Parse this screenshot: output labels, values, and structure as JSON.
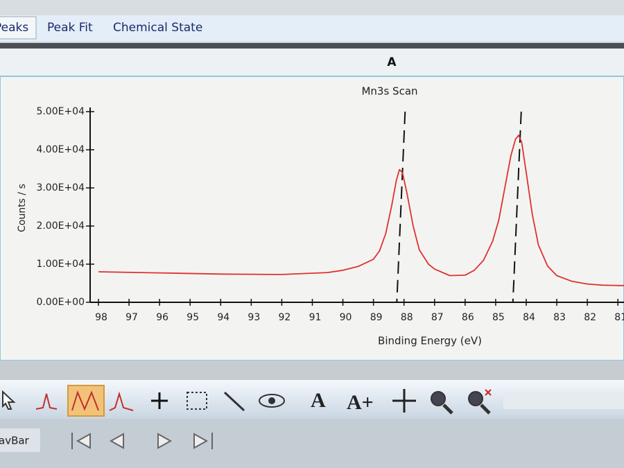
{
  "tabs": [
    "Peaks",
    "Peak Fit",
    "Chemical State"
  ],
  "panel_title": "A",
  "toolbar": {
    "text_tool": "A",
    "text_add_tool": "A+"
  },
  "navbar": {
    "label": "avBar"
  },
  "chart_data": {
    "type": "line",
    "title": "Mn3s Scan",
    "x_label": "Binding Energy (eV)",
    "y_label": "Counts / s",
    "xlim": [
      98,
      80.8
    ],
    "ylim": [
      0,
      50000
    ],
    "xticks": [
      98,
      97,
      96,
      95,
      94,
      93,
      92,
      91,
      90,
      89,
      88,
      87,
      86,
      85,
      84,
      83,
      82,
      81
    ],
    "yticks": [
      {
        "value": 0,
        "label": "0.00E+00"
      },
      {
        "value": 10000,
        "label": "1.00E+04"
      },
      {
        "value": 20000,
        "label": "2.00E+04"
      },
      {
        "value": 30000,
        "label": "3.00E+04"
      },
      {
        "value": 40000,
        "label": "4.00E+04"
      },
      {
        "value": 50000,
        "label": "5.00E+04"
      }
    ],
    "series": [
      {
        "name": "Mn3s",
        "color": "#e0302c",
        "x": [
          98,
          96,
          94,
          92,
          90.5,
          90,
          89.5,
          89,
          88.8,
          88.6,
          88.4,
          88.25,
          88.15,
          88.05,
          87.9,
          87.7,
          87.5,
          87.2,
          87,
          86.5,
          86,
          85.7,
          85.4,
          85.1,
          84.9,
          84.7,
          84.5,
          84.35,
          84.25,
          84.15,
          84,
          83.8,
          83.6,
          83.3,
          83,
          82.5,
          82,
          81.5,
          81,
          80.8
        ],
        "values": [
          8000,
          7700,
          7400,
          7300,
          7800,
          8400,
          9400,
          11300,
          13500,
          18000,
          25500,
          32000,
          34800,
          34000,
          28500,
          20000,
          13800,
          10000,
          8700,
          7000,
          7100,
          8400,
          11000,
          16000,
          21500,
          30000,
          38500,
          42800,
          43800,
          42000,
          34000,
          23000,
          15000,
          9500,
          7000,
          5500,
          4800,
          4500,
          4400,
          4400
        ]
      }
    ],
    "peak_markers": [
      88.1,
      84.3
    ]
  }
}
